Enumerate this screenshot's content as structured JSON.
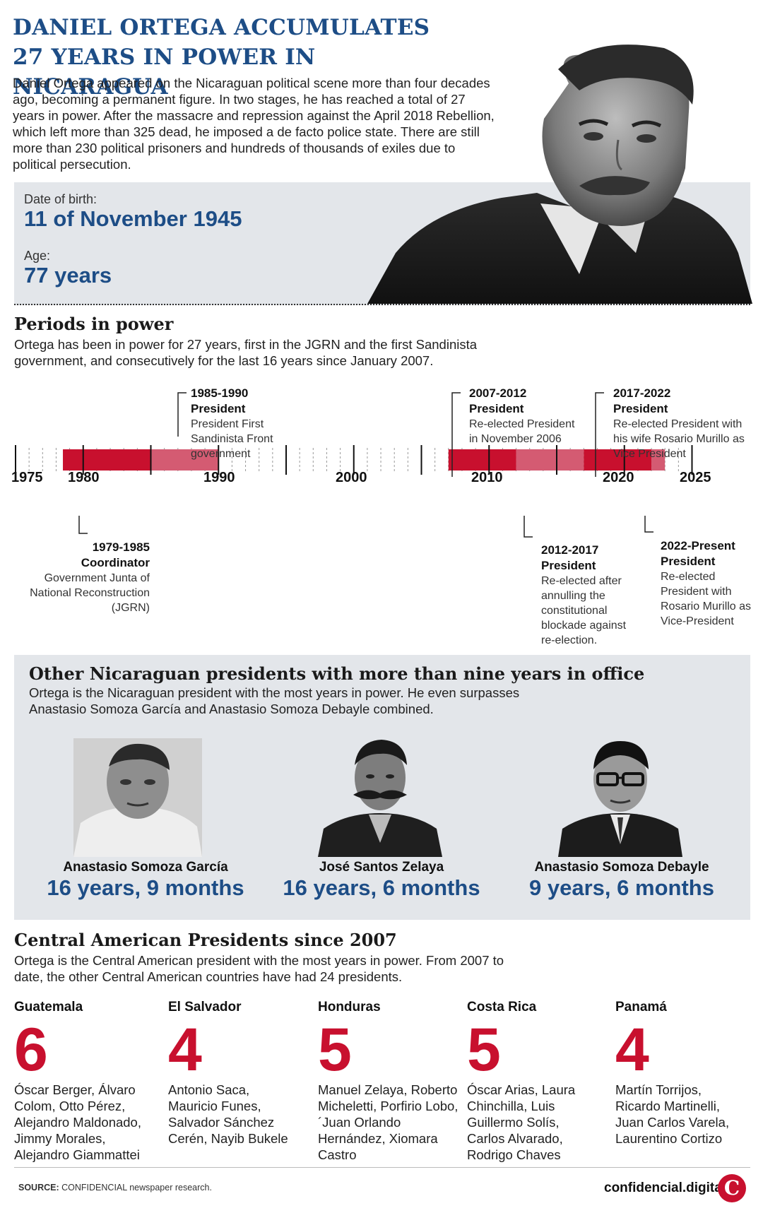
{
  "header": {
    "title_line1": "DANIEL ORTEGA ACCUMULATES",
    "title_line2": "27 YEARS IN POWER IN NICARAGUA",
    "intro": "Daniel Ortega appeared on the Nicaraguan political scene more than four decades ago, becoming a permanent figure. In two stages, he has reached a total of 27 years in power. After the massacre and repression against the April 2018 Rebellion, which left more than 325 dead, he imposed a de facto police state. There are still more than 230 political prisoners and hundreds of thousands of exiles due to political persecution."
  },
  "bio": {
    "dob_label": "Date of birth:",
    "dob_value": "11 of November 1945",
    "age_label": "Age:",
    "age_value": "77 years"
  },
  "periods": {
    "title": "Periods in power",
    "description": "Ortega has been in power for 27 years, first in the JGRN and the first Sandinista government, and consecutively for the last 16 years since January 2007.",
    "year_labels": [
      "1975",
      "1980",
      "1990",
      "2000",
      "2010",
      "2020",
      "2025"
    ],
    "events": [
      {
        "years": "1979-1985",
        "role": "Coordinator",
        "note": "Government Junta of National Reconstruction (JGRN)"
      },
      {
        "years": "1985-1990",
        "role": "President",
        "note": "President First Sandinista Front government"
      },
      {
        "years": "2007-2012",
        "role": "President",
        "note": "Re-elected President in November 2006"
      },
      {
        "years": "2012-2017",
        "role": "President",
        "note": "Re-elected after annulling the constitutional blockade against re-election."
      },
      {
        "years": "2017-2022",
        "role": "President",
        "note": "Re-elected President with his wife Rosario Murillo as Vice President"
      },
      {
        "years": "2022-Present",
        "role": "President",
        "note": "Re-elected President with Rosario Murillo as Vice-President"
      }
    ],
    "bar_colors": {
      "dark": "#c8102e",
      "light": "#d45b72"
    }
  },
  "others": {
    "title": "Other Nicaraguan presidents with more than nine years in office",
    "description": "Ortega is the Nicaraguan president with the most years in power. He even surpasses Anastasio Somoza García and Anastasio Somoza Debayle combined.",
    "presidents": [
      {
        "name": "Anastasio Somoza García",
        "time": "16 years, 9 months"
      },
      {
        "name": "José Santos Zelaya",
        "time": "16 years, 6 months"
      },
      {
        "name": "Anastasio Somoza Debayle",
        "time": "9 years, 6 months"
      }
    ]
  },
  "central": {
    "title": "Central American Presidents since 2007",
    "description": "Ortega is the Central American president with the most years in power. From 2007 to date, the other Central American countries have had 24 presidents.",
    "countries": [
      {
        "name": "Guatemala",
        "count": "6",
        "presidents": "Óscar Berger, Álvaro Colom, Otto Pérez, Alejandro Maldonado, Jimmy Morales, Alejandro Giammattei"
      },
      {
        "name": "El Salvador",
        "count": "4",
        "presidents": "Antonio Saca, Mauricio Funes, Salvador Sánchez Cerén, Nayib Bukele"
      },
      {
        "name": "Honduras",
        "count": "5",
        "presidents": "Manuel Zelaya, Roberto Micheletti, Porfirio Lobo, ´Juan Orlando Hernández, Xiomara Castro"
      },
      {
        "name": "Costa Rica",
        "count": "5",
        "presidents": "Óscar Arias, Laura Chinchilla, Luis Guillermo Solís, Carlos Alvarado, Rodrigo Chaves"
      },
      {
        "name": "Panamá",
        "count": "4",
        "presidents": "Martín Torrijos, Ricardo Martinelli, Juan Carlos Varela, Laurentino Cortizo"
      }
    ]
  },
  "footer": {
    "source_label": "SOURCE:",
    "source_text": "CONFIDENCIAL newspaper research.",
    "brand": "confidencial.digital",
    "logo_letter": "C"
  }
}
